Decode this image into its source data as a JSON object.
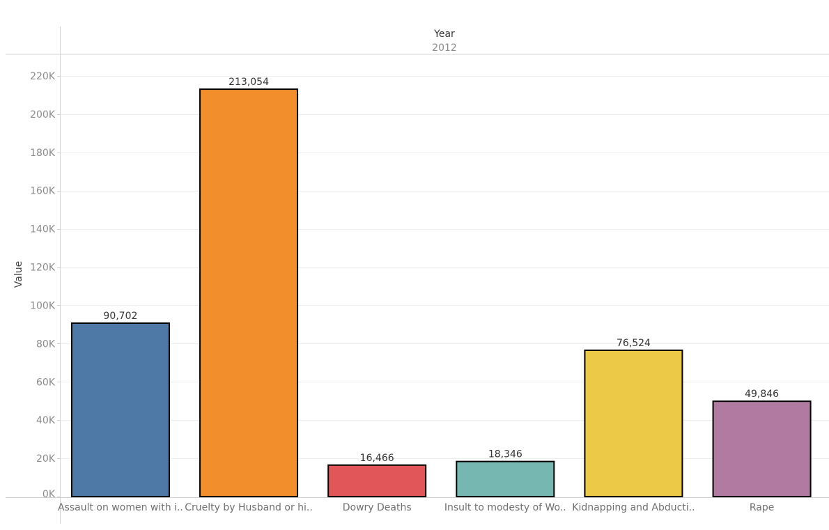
{
  "chart_data": {
    "type": "bar",
    "column_header": {
      "title": "Year",
      "value": "2012"
    },
    "ylabel": "Value",
    "xlabel": "",
    "ylim": [
      0,
      220000
    ],
    "yticks": [
      0,
      20000,
      40000,
      60000,
      80000,
      100000,
      120000,
      140000,
      160000,
      180000,
      200000,
      220000
    ],
    "ytick_labels": [
      "0K",
      "20K",
      "40K",
      "60K",
      "80K",
      "100K",
      "120K",
      "140K",
      "160K",
      "180K",
      "200K",
      "220K"
    ],
    "categories": [
      "Assault on women with i..",
      "Cruelty by Husband or hi..",
      "Dowry Deaths",
      "Insult to modesty of Wo..",
      "Kidnapping and Abducti..",
      "Rape"
    ],
    "values": [
      90702,
      213054,
      16466,
      18346,
      76524,
      49846
    ],
    "data_labels": [
      "90,702",
      "213,054",
      "16,466",
      "18,346",
      "76,524",
      "49,846"
    ],
    "colors": [
      "#4e79a7",
      "#f28e2b",
      "#e15759",
      "#76b7b2",
      "#edc948",
      "#b07aa1"
    ],
    "grid": true,
    "legend": "none"
  }
}
